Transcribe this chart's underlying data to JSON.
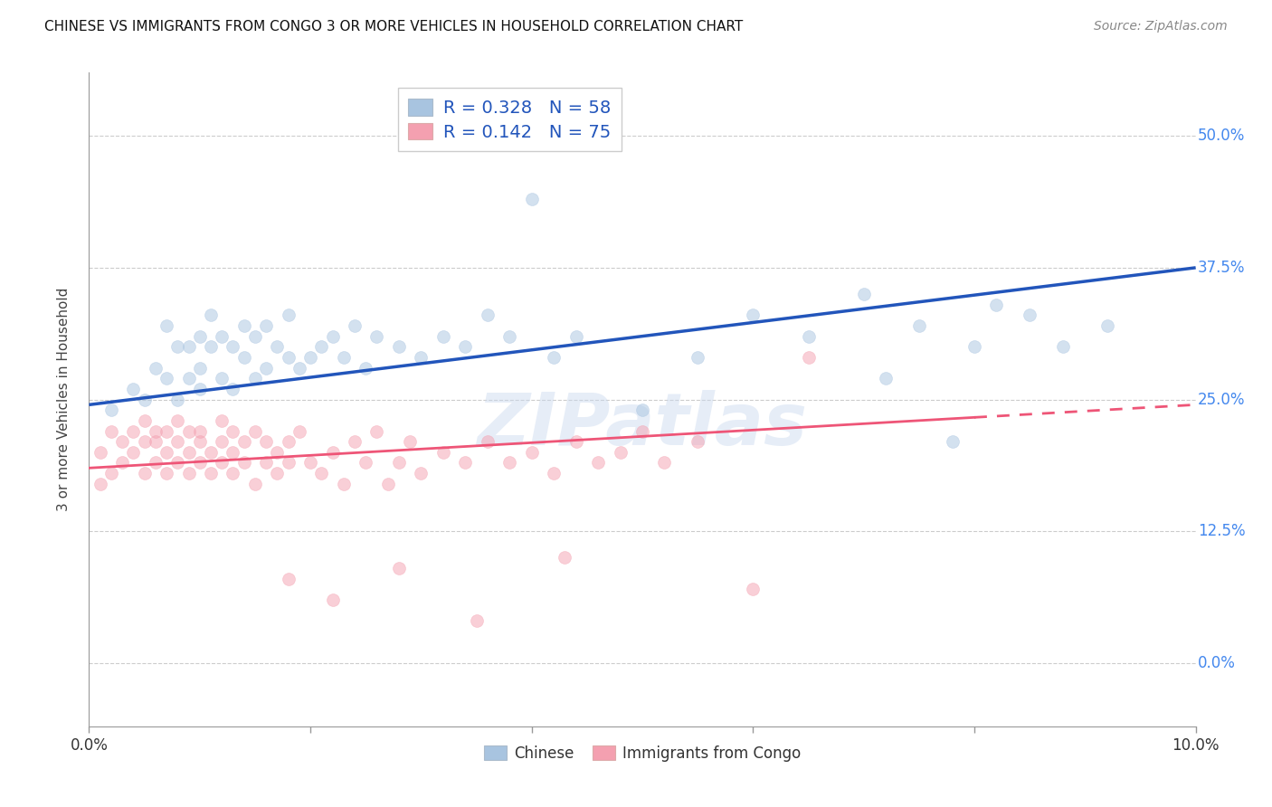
{
  "title": "CHINESE VS IMMIGRANTS FROM CONGO 3 OR MORE VEHICLES IN HOUSEHOLD CORRELATION CHART",
  "source": "Source: ZipAtlas.com",
  "ylabel": "3 or more Vehicles in Household",
  "ytick_values": [
    0.0,
    0.125,
    0.25,
    0.375,
    0.5
  ],
  "ytick_labels": [
    "0.0%",
    "12.5%",
    "25.0%",
    "37.5%",
    "50.0%"
  ],
  "xlim": [
    0.0,
    0.1
  ],
  "ylim": [
    -0.06,
    0.56
  ],
  "legend1_color": "#a8c4e0",
  "legend2_color": "#f4a0b0",
  "line1_color": "#2255bb",
  "line2_color": "#ee5577",
  "watermark": "ZIPatlas",
  "dot_alpha": 0.5,
  "dot_size": 100,
  "chinese_x": [
    0.002,
    0.004,
    0.005,
    0.006,
    0.007,
    0.007,
    0.008,
    0.008,
    0.009,
    0.009,
    0.01,
    0.01,
    0.01,
    0.011,
    0.011,
    0.012,
    0.012,
    0.013,
    0.013,
    0.014,
    0.014,
    0.015,
    0.015,
    0.016,
    0.016,
    0.017,
    0.018,
    0.018,
    0.019,
    0.02,
    0.021,
    0.022,
    0.023,
    0.024,
    0.025,
    0.026,
    0.028,
    0.03,
    0.032,
    0.034,
    0.036,
    0.038,
    0.04,
    0.042,
    0.044,
    0.05,
    0.055,
    0.06,
    0.065,
    0.07,
    0.072,
    0.075,
    0.078,
    0.08,
    0.082,
    0.085,
    0.088,
    0.092
  ],
  "chinese_y": [
    0.24,
    0.26,
    0.25,
    0.28,
    0.27,
    0.32,
    0.3,
    0.25,
    0.27,
    0.3,
    0.26,
    0.28,
    0.31,
    0.3,
    0.33,
    0.27,
    0.31,
    0.26,
    0.3,
    0.29,
    0.32,
    0.27,
    0.31,
    0.28,
    0.32,
    0.3,
    0.29,
    0.33,
    0.28,
    0.29,
    0.3,
    0.31,
    0.29,
    0.32,
    0.28,
    0.31,
    0.3,
    0.29,
    0.31,
    0.3,
    0.33,
    0.31,
    0.44,
    0.29,
    0.31,
    0.24,
    0.29,
    0.33,
    0.31,
    0.35,
    0.27,
    0.32,
    0.21,
    0.3,
    0.34,
    0.33,
    0.3,
    0.32
  ],
  "congo_x": [
    0.001,
    0.001,
    0.002,
    0.002,
    0.003,
    0.003,
    0.004,
    0.004,
    0.005,
    0.005,
    0.005,
    0.006,
    0.006,
    0.006,
    0.007,
    0.007,
    0.007,
    0.008,
    0.008,
    0.008,
    0.009,
    0.009,
    0.009,
    0.01,
    0.01,
    0.01,
    0.011,
    0.011,
    0.012,
    0.012,
    0.012,
    0.013,
    0.013,
    0.013,
    0.014,
    0.014,
    0.015,
    0.015,
    0.016,
    0.016,
    0.017,
    0.017,
    0.018,
    0.018,
    0.019,
    0.02,
    0.021,
    0.022,
    0.023,
    0.024,
    0.025,
    0.026,
    0.027,
    0.028,
    0.029,
    0.03,
    0.032,
    0.034,
    0.036,
    0.038,
    0.04,
    0.042,
    0.044,
    0.046,
    0.048,
    0.05,
    0.052,
    0.055,
    0.06,
    0.065,
    0.018,
    0.022,
    0.028,
    0.035,
    0.043
  ],
  "congo_y": [
    0.2,
    0.17,
    0.22,
    0.18,
    0.21,
    0.19,
    0.2,
    0.22,
    0.18,
    0.21,
    0.23,
    0.19,
    0.21,
    0.22,
    0.18,
    0.2,
    0.22,
    0.19,
    0.21,
    0.23,
    0.18,
    0.2,
    0.22,
    0.19,
    0.21,
    0.22,
    0.18,
    0.2,
    0.19,
    0.21,
    0.23,
    0.18,
    0.2,
    0.22,
    0.19,
    0.21,
    0.17,
    0.22,
    0.19,
    0.21,
    0.18,
    0.2,
    0.19,
    0.21,
    0.22,
    0.19,
    0.18,
    0.2,
    0.17,
    0.21,
    0.19,
    0.22,
    0.17,
    0.19,
    0.21,
    0.18,
    0.2,
    0.19,
    0.21,
    0.19,
    0.2,
    0.18,
    0.21,
    0.19,
    0.2,
    0.22,
    0.19,
    0.21,
    0.07,
    0.29,
    0.08,
    0.06,
    0.09,
    0.04,
    0.1
  ]
}
